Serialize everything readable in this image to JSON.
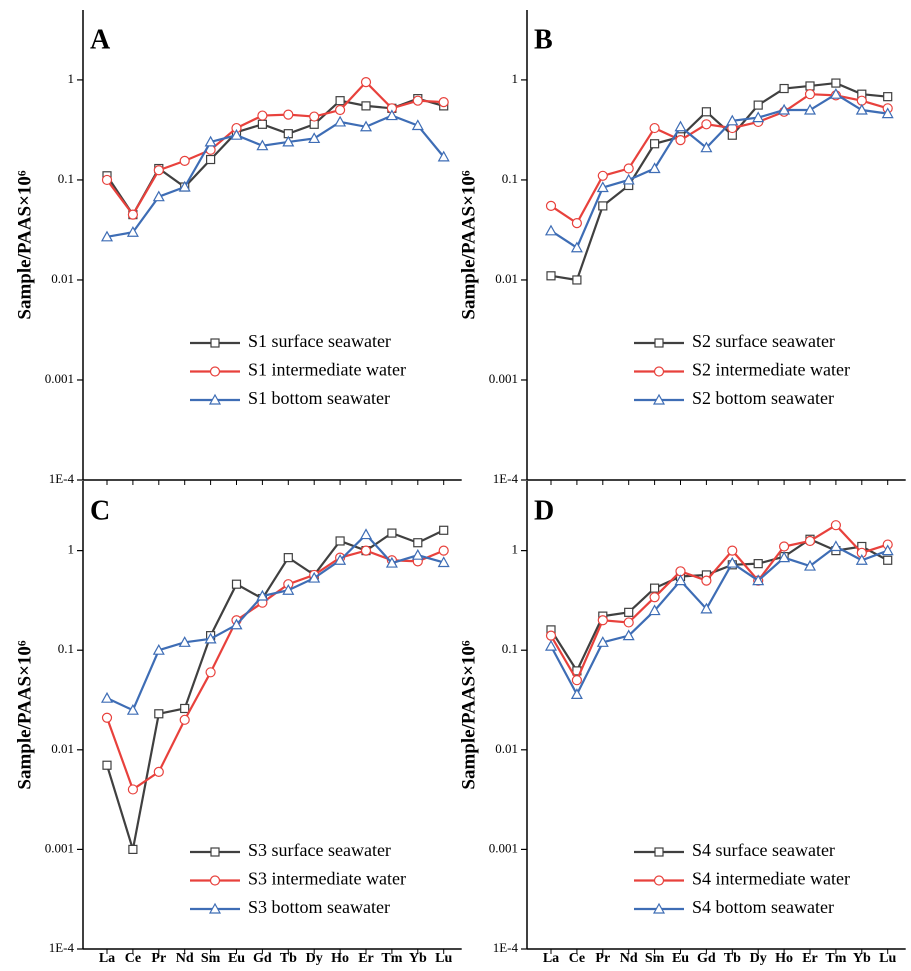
{
  "chart_data": [
    {
      "type": "line",
      "title": "A",
      "ylabel": "Sample/PAAS×10⁶",
      "log_y": true,
      "categories": [
        null,
        null,
        null,
        null,
        null,
        null,
        null,
        null,
        null,
        null,
        null,
        null,
        null,
        null
      ],
      "ylim": [
        0.0001,
        5
      ],
      "yticks": [
        {
          "value": 0.0001,
          "label": "1E-4"
        },
        0.001,
        0.01,
        0.1,
        1
      ],
      "series": [
        {
          "name": "S1 surface seawater",
          "color": "#404040",
          "marker": "square",
          "values": [
            0.11,
            0.045,
            0.13,
            0.085,
            0.16,
            0.3,
            0.36,
            0.29,
            0.36,
            0.62,
            0.55,
            0.52,
            0.65,
            0.55
          ]
        },
        {
          "name": "S1 intermediate water",
          "color": "#e8413c",
          "marker": "circle",
          "values": [
            0.1,
            0.045,
            0.125,
            0.155,
            0.2,
            0.33,
            0.44,
            0.45,
            0.43,
            0.5,
            0.95,
            0.52,
            0.62,
            0.6
          ]
        },
        {
          "name": "S1 bottom seawater",
          "color": "#3e6db5",
          "marker": "triangle",
          "values": [
            0.027,
            0.03,
            0.068,
            0.085,
            0.24,
            0.28,
            0.22,
            0.24,
            0.26,
            0.38,
            0.34,
            0.44,
            0.35,
            0.17
          ]
        }
      ]
    },
    {
      "type": "line",
      "title": "B",
      "ylabel": "Sample/PAAS×10⁶",
      "log_y": true,
      "categories": [
        null,
        null,
        null,
        null,
        null,
        null,
        null,
        null,
        null,
        null,
        null,
        null,
        null,
        null
      ],
      "ylim": [
        0.0001,
        5
      ],
      "yticks": [
        {
          "value": 0.0001,
          "label": "1E-4"
        },
        0.001,
        0.01,
        0.1,
        1
      ],
      "series": [
        {
          "name": "S2 surface seawater",
          "color": "#404040",
          "marker": "square",
          "values": [
            0.011,
            0.01,
            0.055,
            0.088,
            0.23,
            0.27,
            0.48,
            0.28,
            0.56,
            0.82,
            0.87,
            0.93,
            0.72,
            0.68
          ]
        },
        {
          "name": "S2 intermediate water",
          "color": "#e8413c",
          "marker": "circle",
          "values": [
            0.055,
            0.037,
            0.11,
            0.13,
            0.33,
            0.25,
            0.36,
            0.33,
            0.38,
            0.48,
            0.72,
            0.7,
            0.62,
            0.52
          ]
        },
        {
          "name": "S2 bottom seawater",
          "color": "#3e6db5",
          "marker": "triangle",
          "values": [
            0.031,
            0.021,
            0.084,
            0.1,
            0.13,
            0.34,
            0.21,
            0.39,
            0.42,
            0.5,
            0.5,
            0.72,
            0.5,
            0.46
          ]
        }
      ]
    },
    {
      "type": "line",
      "title": "C",
      "ylabel": "Sample/PAAS×10⁶",
      "log_y": true,
      "categories": [
        "La",
        "Ce",
        "Pr",
        "Nd",
        "Sm",
        "Eu",
        "Gd",
        "Tb",
        "Dy",
        "Ho",
        "Er",
        "Tm",
        "Yb",
        "Lu"
      ],
      "ylim": [
        0.0001,
        5
      ],
      "yticks": [
        {
          "value": 0.0001,
          "label": "1E-4"
        },
        0.001,
        0.01,
        0.1,
        1
      ],
      "series": [
        {
          "name": "S3 surface seawater",
          "color": "#404040",
          "marker": "square",
          "values": [
            0.007,
            0.001,
            0.023,
            0.026,
            0.14,
            0.46,
            0.33,
            0.85,
            0.57,
            1.25,
            1.0,
            1.5,
            1.2,
            1.6
          ]
        },
        {
          "name": "S3 intermediate water",
          "color": "#e8413c",
          "marker": "circle",
          "values": [
            0.021,
            0.004,
            0.006,
            0.02,
            0.06,
            0.2,
            0.3,
            0.46,
            0.57,
            0.85,
            1.0,
            0.8,
            0.78,
            1.0
          ]
        },
        {
          "name": "S3 bottom seawater",
          "color": "#3e6db5",
          "marker": "triangle",
          "values": [
            0.033,
            0.025,
            0.1,
            0.12,
            0.13,
            0.18,
            0.35,
            0.4,
            0.53,
            0.8,
            1.45,
            0.75,
            0.9,
            0.76
          ]
        }
      ]
    },
    {
      "type": "line",
      "title": "D",
      "ylabel": "Sample/PAAS×10⁶",
      "log_y": true,
      "categories": [
        "La",
        "Ce",
        "Pr",
        "Nd",
        "Sm",
        "Eu",
        "Gd",
        "Tb",
        "Dy",
        "Ho",
        "Er",
        "Tm",
        "Yb",
        "Lu"
      ],
      "ylim": [
        0.0001,
        5
      ],
      "yticks": [
        {
          "value": 0.0001,
          "label": "1E-4"
        },
        0.001,
        0.01,
        0.1,
        1
      ],
      "series": [
        {
          "name": "S4 surface seawater",
          "color": "#404040",
          "marker": "square",
          "values": [
            0.16,
            0.062,
            0.22,
            0.24,
            0.42,
            0.55,
            0.57,
            0.72,
            0.74,
            0.87,
            1.3,
            1.0,
            1.1,
            0.8
          ]
        },
        {
          "name": "S4 intermediate water",
          "color": "#e8413c",
          "marker": "circle",
          "values": [
            0.14,
            0.05,
            0.2,
            0.19,
            0.34,
            0.62,
            0.5,
            1.0,
            0.5,
            1.1,
            1.25,
            1.8,
            0.95,
            1.15
          ]
        },
        {
          "name": "S4 bottom seawater",
          "color": "#3e6db5",
          "marker": "triangle",
          "values": [
            0.11,
            0.036,
            0.12,
            0.14,
            0.25,
            0.5,
            0.26,
            0.75,
            0.5,
            0.85,
            0.7,
            1.1,
            0.8,
            1.0
          ]
        }
      ]
    }
  ]
}
